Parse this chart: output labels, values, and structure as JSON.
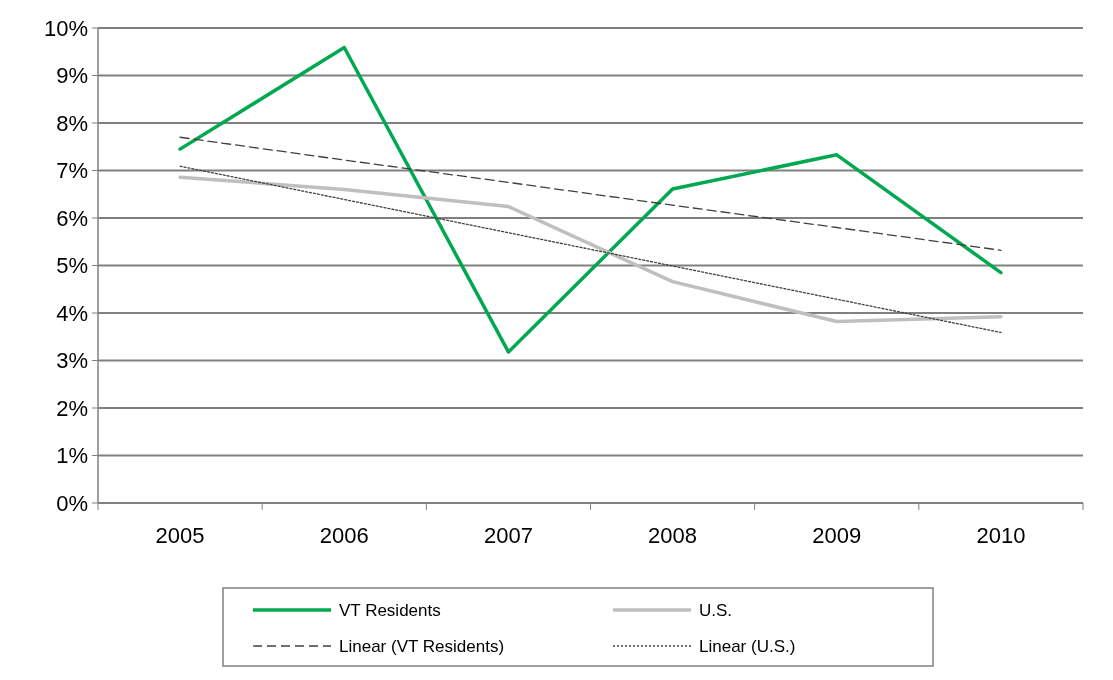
{
  "chart_data": {
    "type": "line",
    "categories": [
      "2005",
      "2006",
      "2007",
      "2008",
      "2009",
      "2010"
    ],
    "series": [
      {
        "name": "VT Residents",
        "color": "#00a84f",
        "line_style": "solid",
        "values": [
          7.45,
          9.59,
          3.18,
          6.61,
          7.33,
          4.85
        ]
      },
      {
        "name": "U.S.",
        "color": "#bfbfbf",
        "line_style": "solid",
        "values": [
          6.86,
          6.6,
          6.24,
          4.66,
          3.82,
          3.92
        ]
      },
      {
        "name": "Linear (VT Residents)",
        "color": "#404040",
        "line_style": "dashed",
        "values": [
          7.7,
          7.22,
          6.75,
          6.27,
          5.8,
          5.32
        ]
      },
      {
        "name": "Linear (U.S.)",
        "color": "#404040",
        "line_style": "dotted",
        "values": [
          7.09,
          6.39,
          5.69,
          4.99,
          4.29,
          3.59
        ]
      }
    ],
    "ylim": [
      0,
      10
    ],
    "yticks": [
      {
        "value": 0,
        "label": "0%"
      },
      {
        "value": 1,
        "label": "1%"
      },
      {
        "value": 2,
        "label": "2%"
      },
      {
        "value": 3,
        "label": "3%"
      },
      {
        "value": 4,
        "label": "4%"
      },
      {
        "value": 5,
        "label": "5%"
      },
      {
        "value": 6,
        "label": "6%"
      },
      {
        "value": 7,
        "label": "7%"
      },
      {
        "value": 8,
        "label": "8%"
      },
      {
        "value": 9,
        "label": "9%"
      },
      {
        "value": 10,
        "label": "10%"
      }
    ],
    "grid": "y",
    "legend": "bottom"
  }
}
